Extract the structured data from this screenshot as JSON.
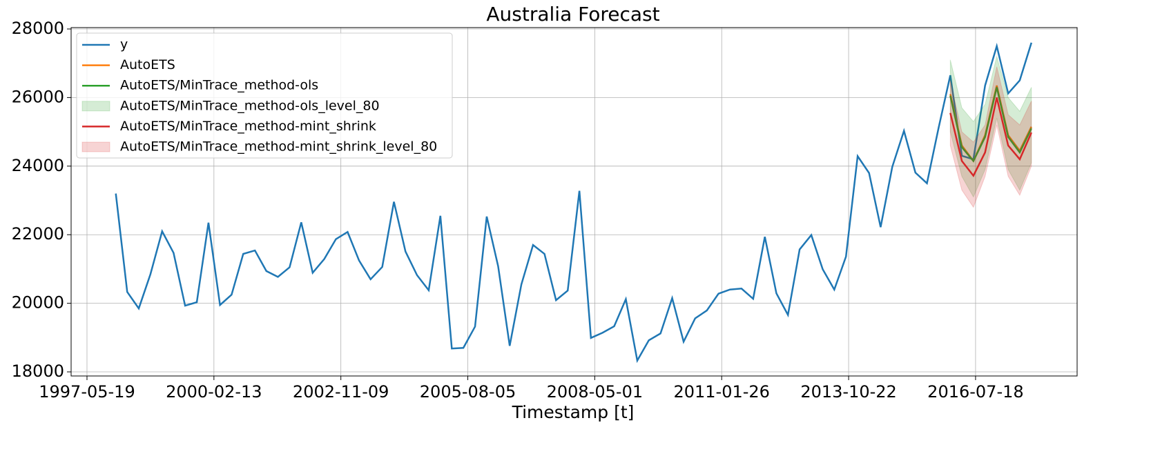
{
  "chart_data": {
    "type": "line",
    "title": "Australia Forecast",
    "xlabel": "Timestamp [t]",
    "x": [
      "1998-01-01",
      "1998-04-01",
      "1998-07-01",
      "1998-10-01",
      "1999-01-01",
      "1999-04-01",
      "1999-07-01",
      "1999-10-01",
      "2000-01-01",
      "2000-04-01",
      "2000-07-01",
      "2000-10-01",
      "2001-01-01",
      "2001-04-01",
      "2001-07-01",
      "2001-10-01",
      "2002-01-01",
      "2002-04-01",
      "2002-07-01",
      "2002-10-01",
      "2003-01-01",
      "2003-04-01",
      "2003-07-01",
      "2003-10-01",
      "2004-01-01",
      "2004-04-01",
      "2004-07-01",
      "2004-10-01",
      "2005-01-01",
      "2005-04-01",
      "2005-07-01",
      "2005-10-01",
      "2006-01-01",
      "2006-04-01",
      "2006-07-01",
      "2006-10-01",
      "2007-01-01",
      "2007-04-01",
      "2007-07-01",
      "2007-10-01",
      "2008-01-01",
      "2008-04-01",
      "2008-07-01",
      "2008-10-01",
      "2009-01-01",
      "2009-04-01",
      "2009-07-01",
      "2009-10-01",
      "2010-01-01",
      "2010-04-01",
      "2010-07-01",
      "2010-10-01",
      "2011-01-01",
      "2011-04-01",
      "2011-07-01",
      "2011-10-01",
      "2012-01-01",
      "2012-04-01",
      "2012-07-01",
      "2012-10-01",
      "2013-01-01",
      "2013-04-01",
      "2013-07-01",
      "2013-10-01",
      "2014-01-01",
      "2014-04-01",
      "2014-07-01",
      "2014-10-01",
      "2015-01-01",
      "2015-04-01",
      "2015-07-01",
      "2015-10-01",
      "2016-01-01",
      "2016-04-01",
      "2016-07-01",
      "2016-10-01",
      "2017-01-01",
      "2017-04-01",
      "2017-07-01",
      "2017-10-01"
    ],
    "series": [
      {
        "name": "y",
        "kind": "line",
        "color": "#1f77b4",
        "values": [
          23200,
          20330,
          19850,
          20850,
          22100,
          21470,
          19930,
          20030,
          22350,
          19950,
          20250,
          21440,
          21540,
          20940,
          20770,
          21050,
          22360,
          20890,
          21290,
          21870,
          22080,
          21250,
          20700,
          21060,
          22960,
          21510,
          20820,
          20380,
          22550,
          18680,
          18700,
          19320,
          22530,
          21080,
          18760,
          20550,
          21700,
          21440,
          20090,
          20370,
          23280,
          18990,
          19140,
          19330,
          20120,
          18330,
          18920,
          19120,
          20150,
          18880,
          19560,
          19790,
          20280,
          20400,
          20430,
          20130,
          21940,
          20290,
          19660,
          21570,
          21990,
          20990,
          20400,
          21360,
          24290,
          23800,
          22220,
          23980,
          25030,
          23810,
          23500,
          25120,
          26650,
          24300,
          24200,
          26350,
          27500,
          26120,
          26500,
          27600
        ]
      },
      {
        "name": "AutoETS",
        "kind": "line",
        "color": "#ff7f0e",
        "x": [
          "2016-01-01",
          "2016-04-01",
          "2016-07-01",
          "2016-10-01",
          "2017-01-01",
          "2017-04-01",
          "2017-07-01",
          "2017-10-01"
        ],
        "values": [
          26100,
          24600,
          24150,
          24900,
          26350,
          24900,
          24450,
          25150
        ]
      },
      {
        "name": "AutoETS/MinTrace_method-ols",
        "kind": "line",
        "color": "#2ca02c",
        "x": [
          "2016-01-01",
          "2016-04-01",
          "2016-07-01",
          "2016-10-01",
          "2017-01-01",
          "2017-04-01",
          "2017-07-01",
          "2017-10-01"
        ],
        "values": [
          26050,
          24550,
          24150,
          24850,
          26300,
          24850,
          24400,
          25100
        ]
      },
      {
        "name": "AutoETS/MinTrace_method-ols_level_80",
        "kind": "band",
        "color": "#2ca02c",
        "x": [
          "2016-01-01",
          "2016-04-01",
          "2016-07-01",
          "2016-10-01",
          "2017-01-01",
          "2017-04-01",
          "2017-07-01",
          "2017-10-01"
        ],
        "lower": [
          25000,
          23700,
          23100,
          23900,
          25400,
          23900,
          23300,
          24100
        ],
        "upper": [
          27100,
          25700,
          25300,
          25800,
          27200,
          26000,
          25600,
          26300
        ]
      },
      {
        "name": "AutoETS/MinTrace_method-mint_shrink",
        "kind": "line",
        "color": "#d62728",
        "x": [
          "2016-01-01",
          "2016-04-01",
          "2016-07-01",
          "2016-10-01",
          "2017-01-01",
          "2017-04-01",
          "2017-07-01",
          "2017-10-01"
        ],
        "values": [
          25550,
          24150,
          23720,
          24400,
          26000,
          24600,
          24200,
          24980
        ]
      },
      {
        "name": "AutoETS/MinTrace_method-mint_shrink_level_80",
        "kind": "band",
        "color": "#d62728",
        "x": [
          "2016-01-01",
          "2016-04-01",
          "2016-07-01",
          "2016-10-01",
          "2017-01-01",
          "2017-04-01",
          "2017-07-01",
          "2017-10-01"
        ],
        "lower": [
          24600,
          23300,
          22800,
          23700,
          25200,
          23700,
          23150,
          24000
        ],
        "upper": [
          26500,
          25000,
          24700,
          25200,
          26900,
          25500,
          25200,
          25900
        ]
      }
    ],
    "xlim": [
      "1997-01-14",
      "2018-09-26"
    ],
    "xticks": [
      "1997-05-19",
      "2000-02-13",
      "2002-11-09",
      "2005-08-05",
      "2008-05-01",
      "2011-01-26",
      "2013-10-22",
      "2016-07-18"
    ],
    "ylim": [
      17880,
      28040
    ],
    "yticks": [
      18000,
      20000,
      22000,
      24000,
      26000,
      28000
    ],
    "grid": true,
    "legend": "upper left"
  }
}
